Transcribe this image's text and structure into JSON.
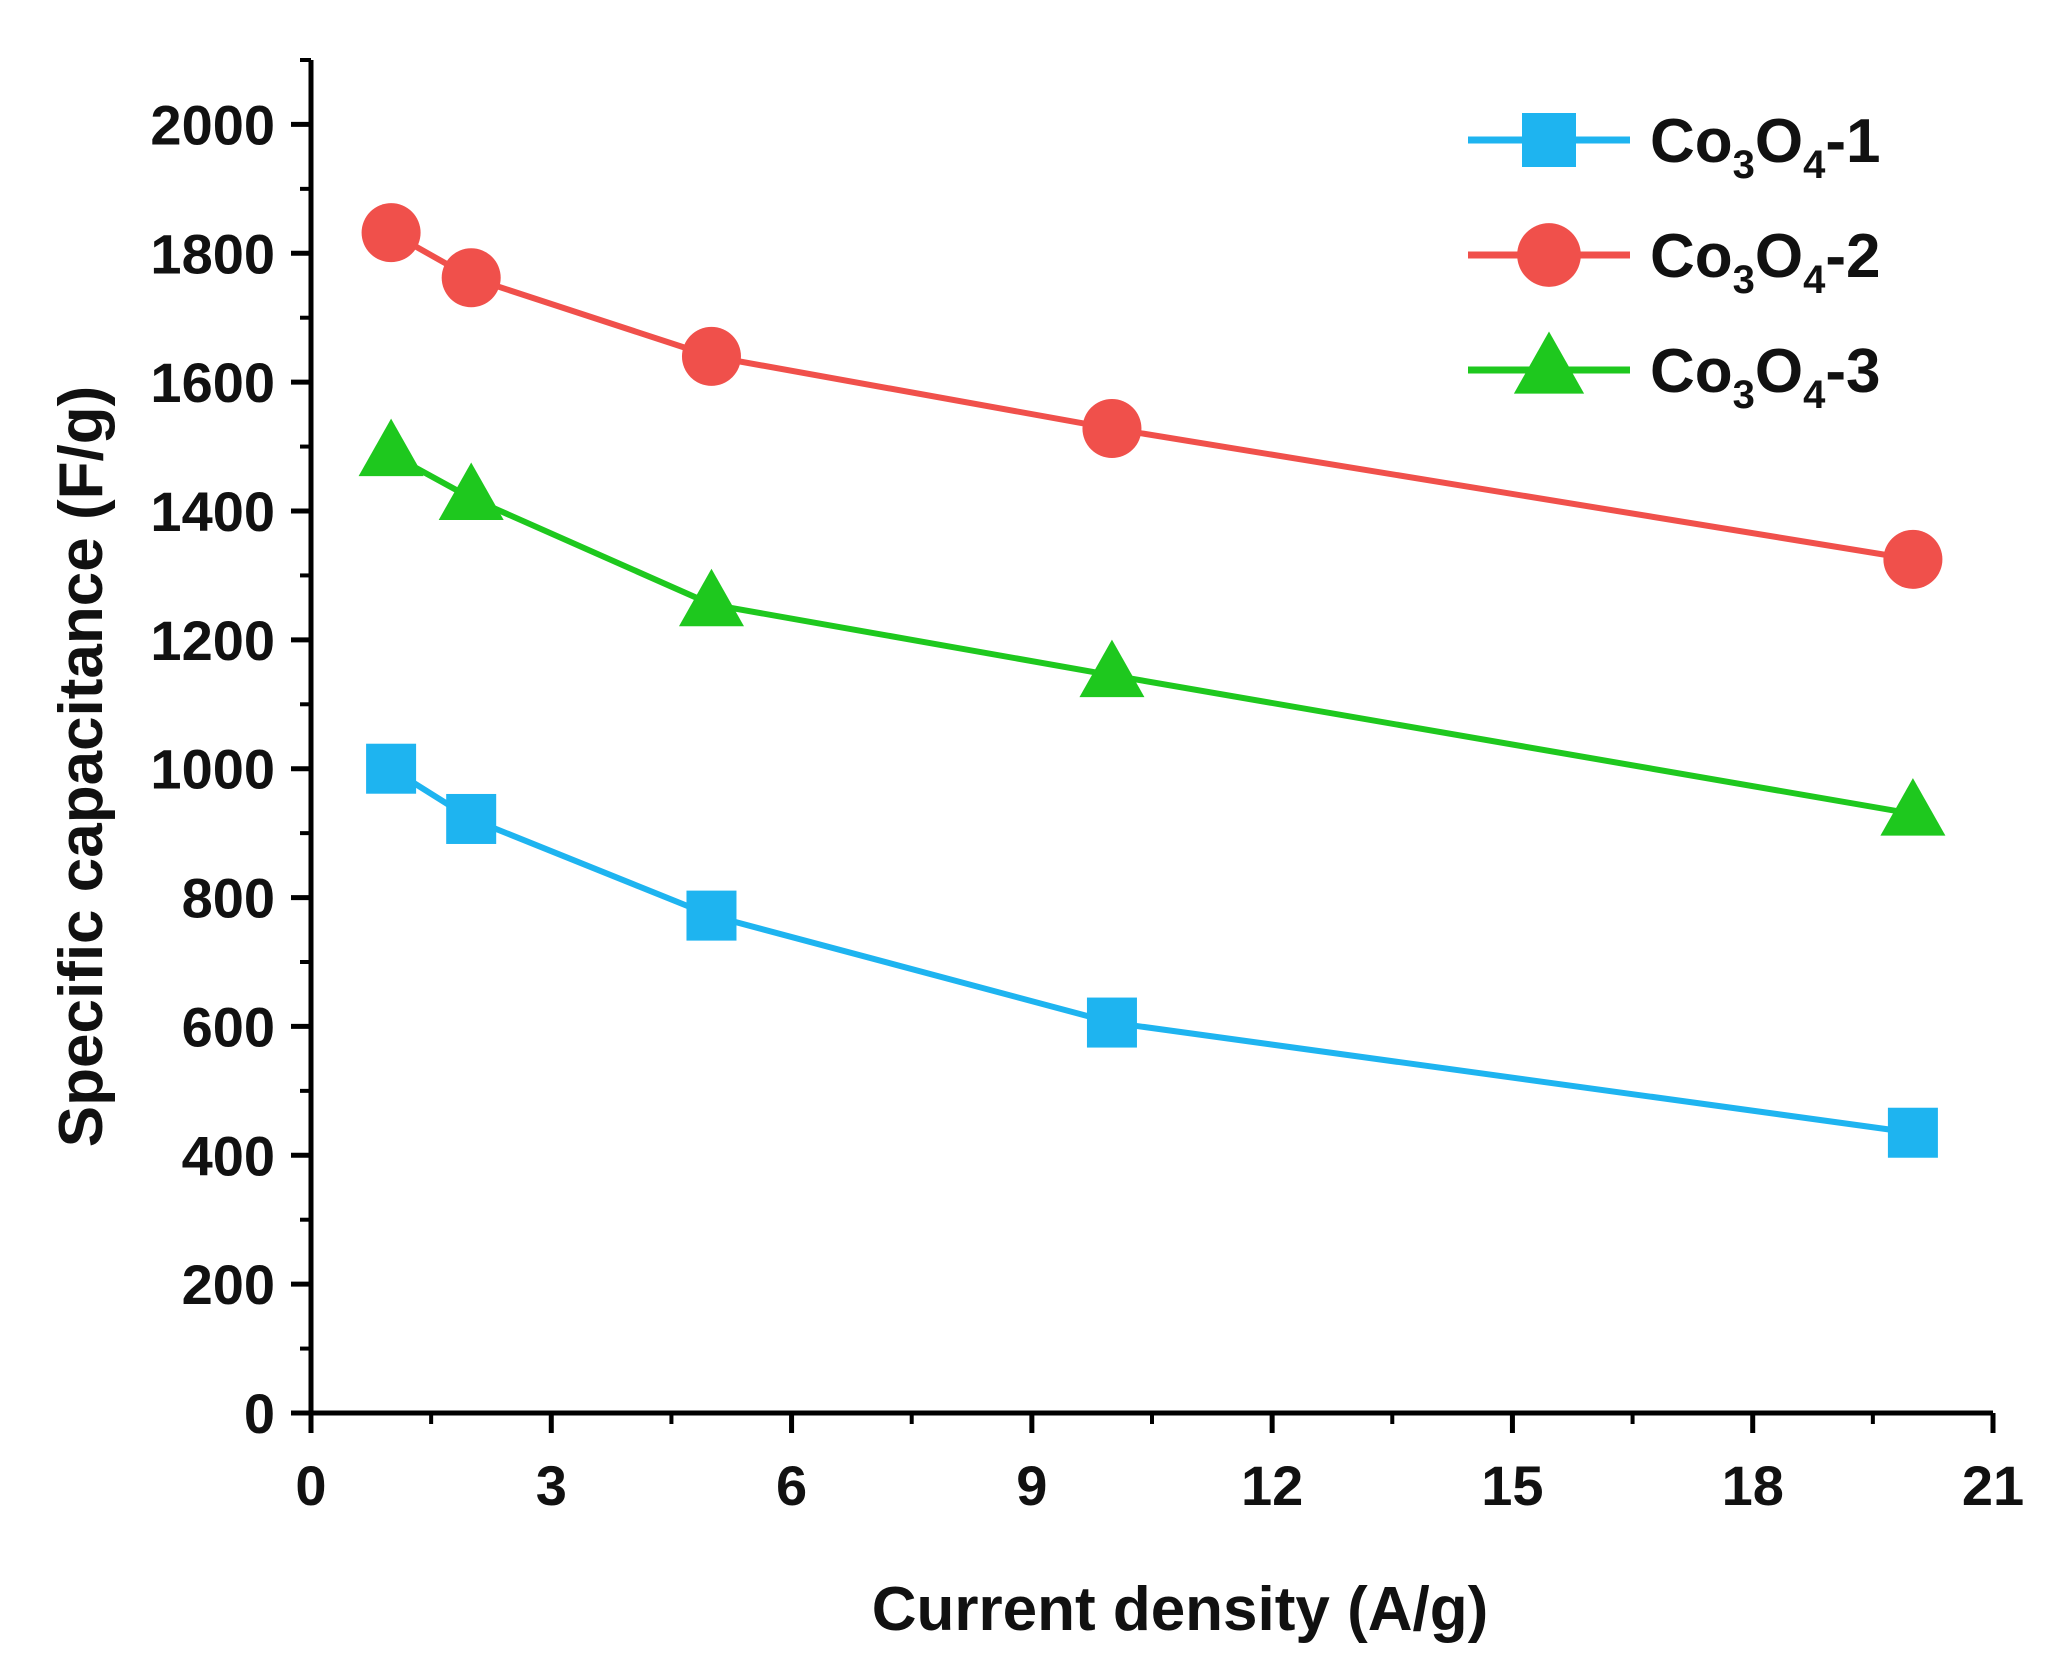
{
  "chart_data": {
    "type": "line",
    "title": "",
    "xlabel": "Current density (A/g)",
    "ylabel": "Specific capacitance (F/g)",
    "xlim": [
      0,
      21
    ],
    "ylim": [
      0,
      2100
    ],
    "xticks": [
      0,
      3,
      6,
      9,
      12,
      15,
      18,
      21
    ],
    "yticks": [
      0,
      200,
      400,
      600,
      800,
      1000,
      1200,
      1400,
      1600,
      1800,
      2000
    ],
    "x": [
      1,
      2,
      5,
      10,
      20
    ],
    "legend_position": "top-right",
    "series": [
      {
        "name": "Co3O4-1",
        "label_parts": [
          "Co",
          "3",
          "O",
          "4",
          "-1"
        ],
        "marker": "square",
        "color": "#1EB4F0",
        "values": [
          1000,
          922,
          772,
          606,
          435
        ]
      },
      {
        "name": "Co3O4-2",
        "label_parts": [
          "Co",
          "3",
          "O",
          "4",
          "-2"
        ],
        "marker": "circle",
        "color": "#F0504B",
        "values": [
          1832,
          1762,
          1640,
          1528,
          1325
        ]
      },
      {
        "name": "Co3O4-3",
        "label_parts": [
          "Co",
          "3",
          "O",
          "4",
          "-3"
        ],
        "marker": "triangle",
        "color": "#1EC81E",
        "values": [
          1488,
          1420,
          1255,
          1145,
          930
        ]
      }
    ]
  }
}
